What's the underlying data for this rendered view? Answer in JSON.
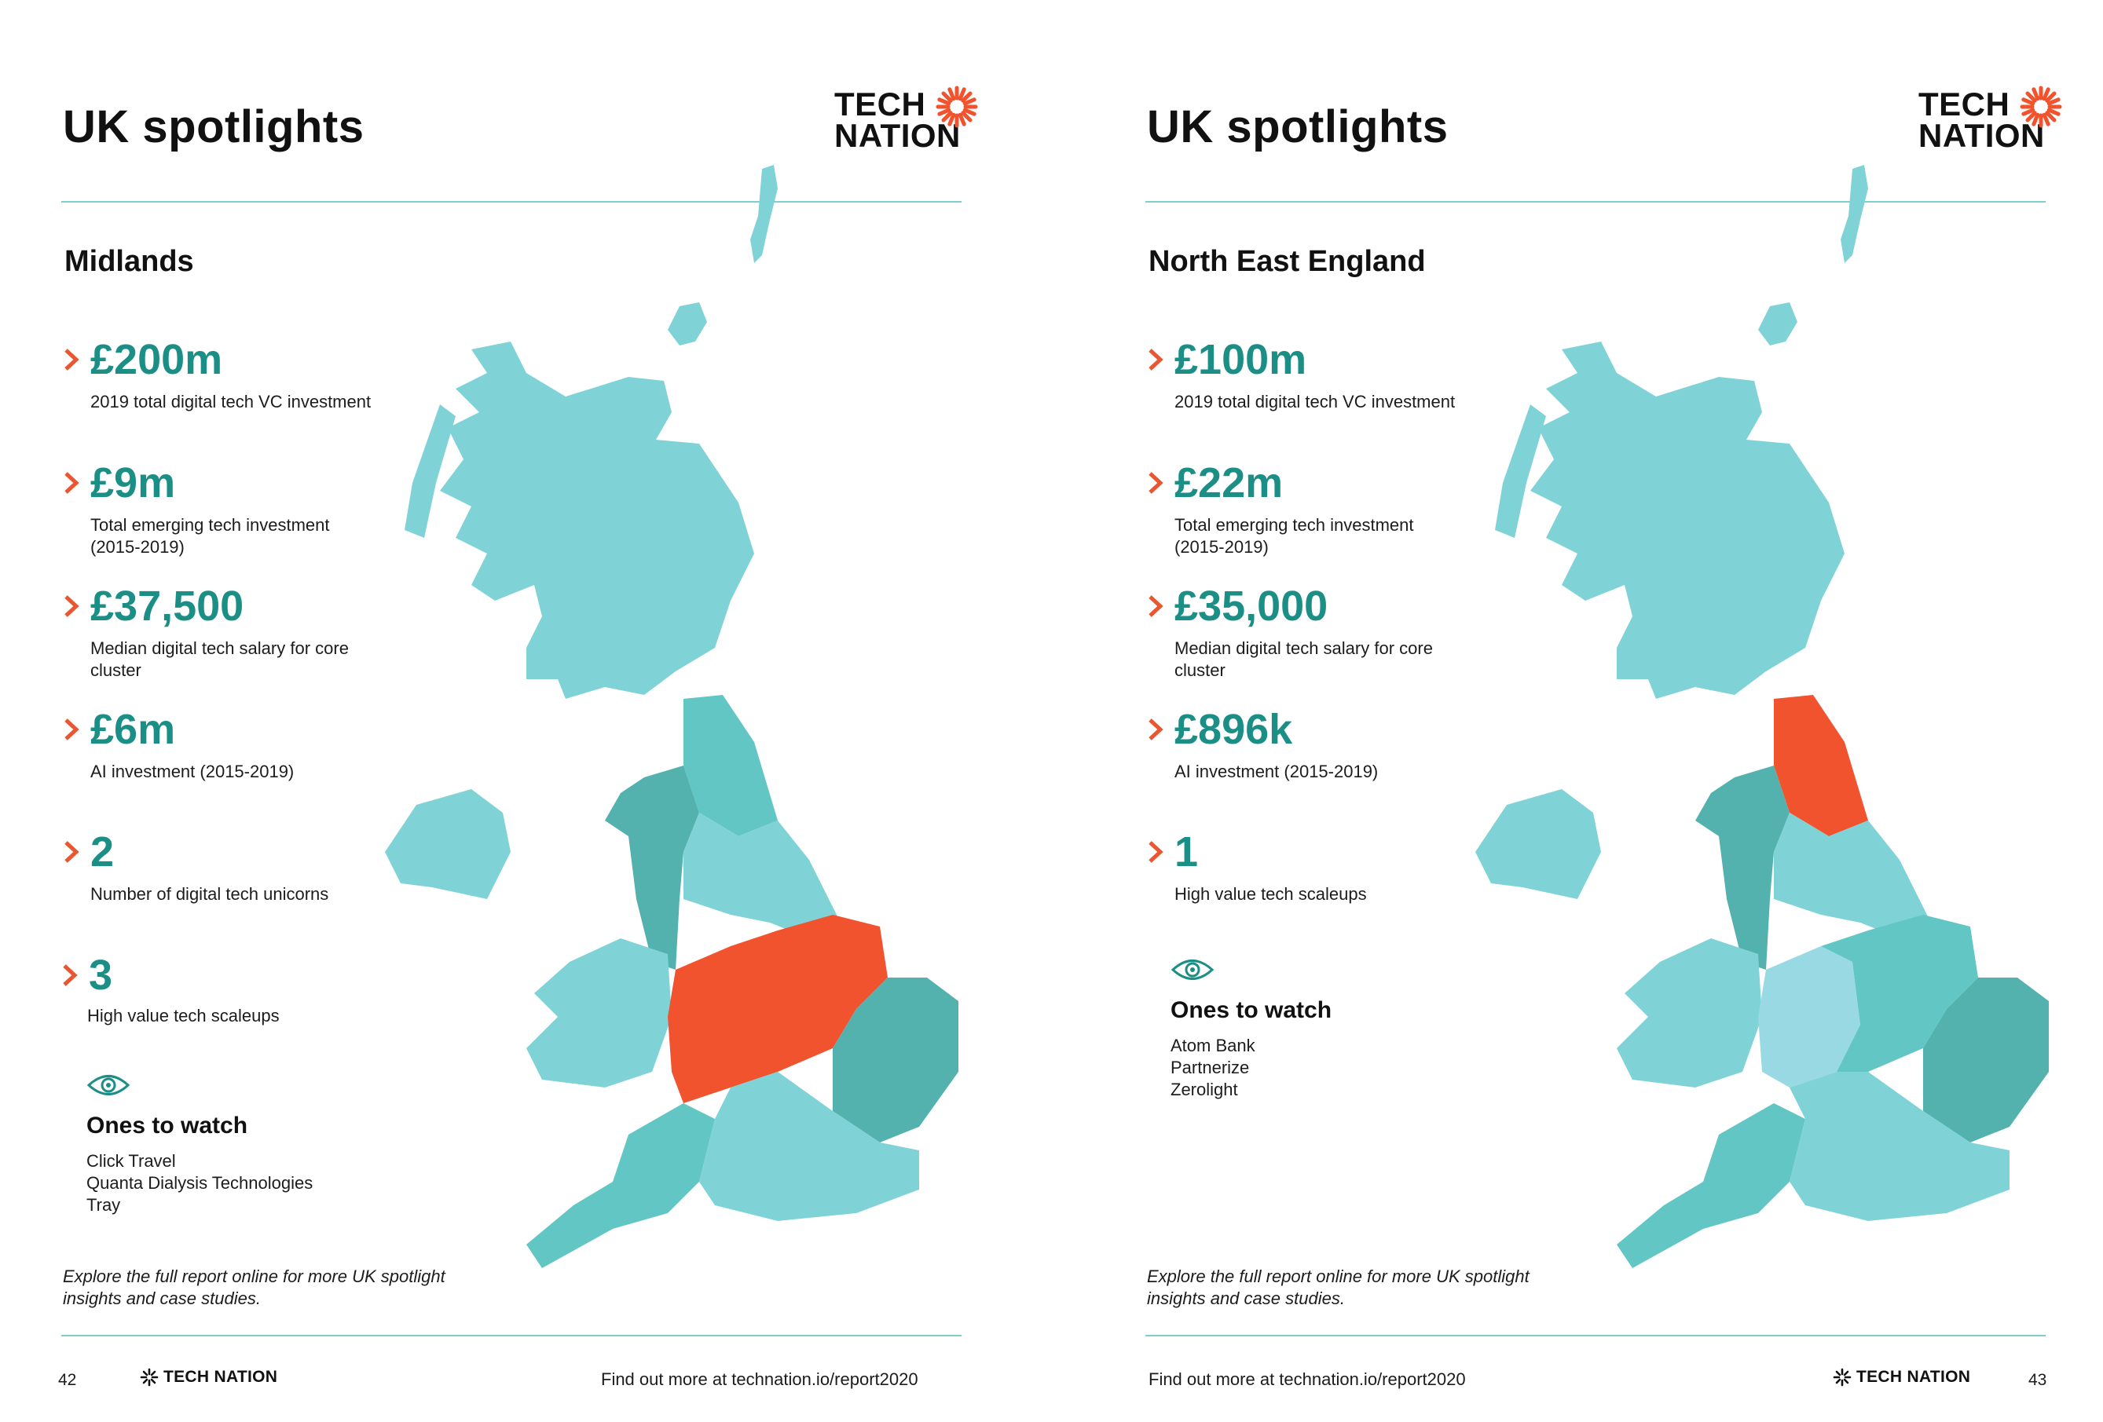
{
  "pages": [
    {
      "title": "UK spotlights",
      "logo": {
        "line1": "TECH",
        "line2": "NATION"
      },
      "region": "Midlands",
      "stats": [
        {
          "value": "£200m",
          "label": "2019 total digital tech VC investment"
        },
        {
          "value": "£9m",
          "label": "Total emerging tech investment (2015-2019)"
        },
        {
          "value": "£37,500",
          "label": "Median digital tech salary for core cluster"
        },
        {
          "value": "£6m",
          "label": "AI investment (2015-2019)"
        },
        {
          "value": "2",
          "label": "Number of digital tech unicorns"
        },
        {
          "value": "3",
          "label": "High value tech scaleups"
        }
      ],
      "watch": {
        "title": "Ones to watch",
        "items": [
          "Click Travel",
          "Quanta Dialysis Technologies",
          "Tray"
        ]
      },
      "explore": "Explore the full report online for more UK spotlight insights and case studies.",
      "footer_link": "Find out more at technation.io/report2020",
      "footer_logo": "TECH NATION",
      "page_number": "42",
      "highlight_color": "#f0532d"
    },
    {
      "title": "UK spotlights",
      "logo": {
        "line1": "TECH",
        "line2": "NATION"
      },
      "region": "North East England",
      "stats": [
        {
          "value": "£100m",
          "label": "2019 total digital tech VC investment"
        },
        {
          "value": "£22m",
          "label": "Total emerging tech investment (2015-2019)"
        },
        {
          "value": "£35,000",
          "label": "Median digital tech salary for core cluster"
        },
        {
          "value": "£896k",
          "label": "AI investment (2015-2019)"
        },
        {
          "value": "1",
          "label": "High value tech scaleups"
        }
      ],
      "watch": {
        "title": "Ones to watch",
        "items": [
          "Atom Bank",
          "Partnerize",
          "Zerolight"
        ]
      },
      "explore": "Explore the full report online for more UK spotlight insights and case studies.",
      "footer_link": "Find out more at technation.io/report2020",
      "footer_logo": "TECH NATION",
      "page_number": "43",
      "highlight_color": "#f0532d"
    }
  ],
  "colors": {
    "accent_teal": "#1b8f86",
    "chevron_orange": "#e9562f",
    "map_light": "#7fd3d7",
    "map_mid": "#62c6c4",
    "map_dark": "#53b1ae",
    "map_pale": "#98d9e3"
  }
}
